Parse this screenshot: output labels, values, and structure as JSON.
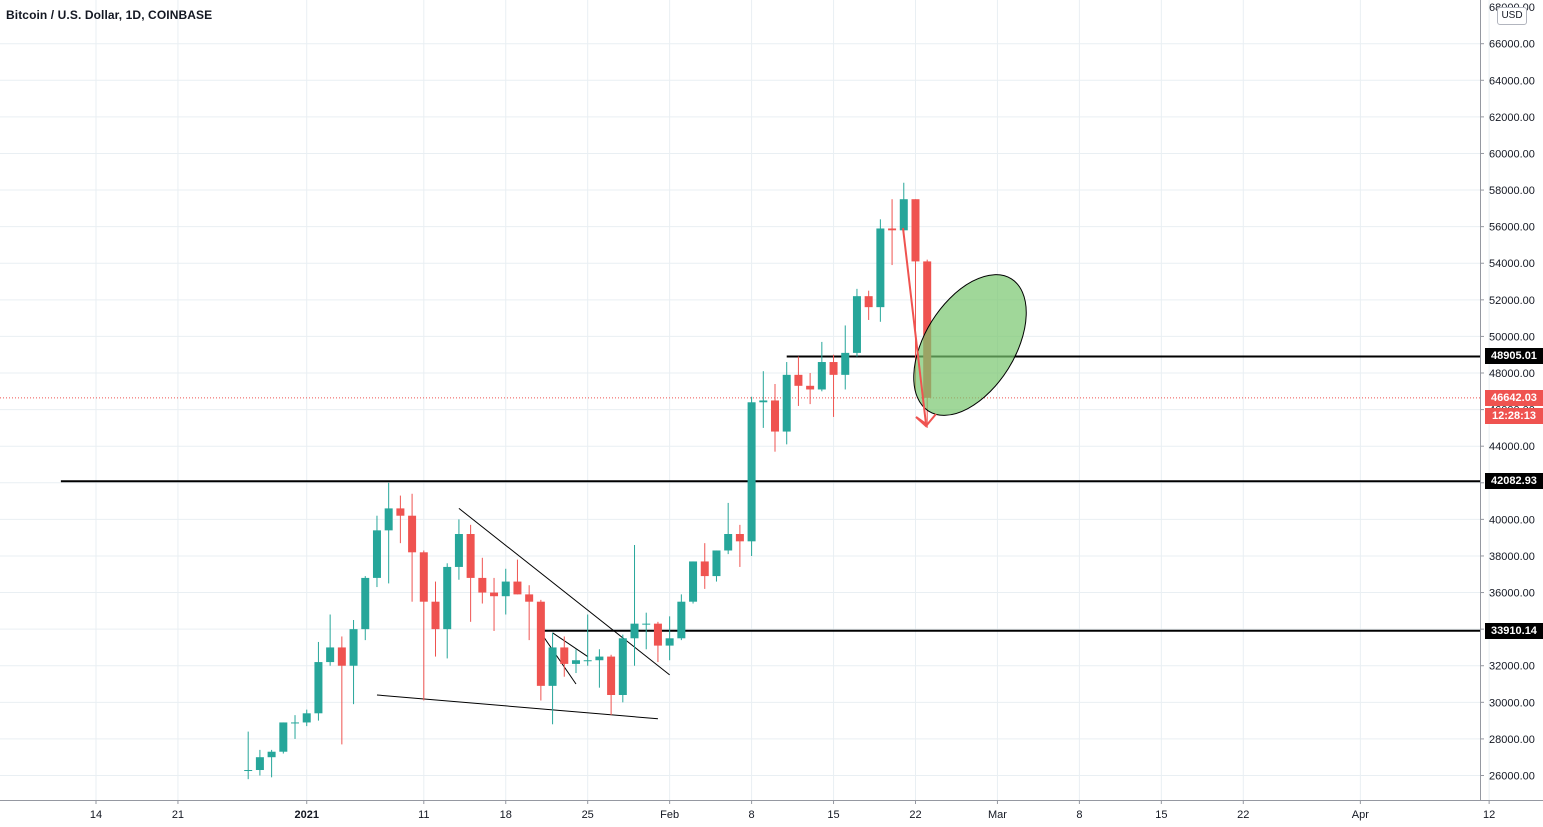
{
  "title": "Bitcoin / U.S. Dollar, 1D, COINBASE",
  "currency": "USD",
  "chart_data": {
    "type": "candlestick",
    "symbol": "Bitcoin / U.S. Dollar",
    "interval": "1D",
    "exchange": "COINBASE",
    "y_axis": {
      "ticks": [
        "26000.00",
        "28000.00",
        "30000.00",
        "32000.00",
        "34000.00",
        "36000.00",
        "38000.00",
        "40000.00",
        "42000.00",
        "44000.00",
        "46000.00",
        "48000.00",
        "50000.00",
        "52000.00",
        "54000.00",
        "56000.00",
        "58000.00",
        "60000.00",
        "62000.00",
        "64000.00",
        "66000.00"
      ],
      "range": [
        24800,
        68400
      ]
    },
    "x_axis": {
      "ticks": [
        {
          "label": "14",
          "date": "2020-12-14"
        },
        {
          "label": "21",
          "date": "2020-12-21"
        },
        {
          "label": "2021",
          "date": "2021-01-01",
          "bold": true
        },
        {
          "label": "11",
          "date": "2021-01-11"
        },
        {
          "label": "18",
          "date": "2021-01-18"
        },
        {
          "label": "25",
          "date": "2021-01-25"
        },
        {
          "label": "Feb",
          "date": "2021-02-01"
        },
        {
          "label": "8",
          "date": "2021-02-08"
        },
        {
          "label": "15",
          "date": "2021-02-15"
        },
        {
          "label": "22",
          "date": "2021-02-22"
        },
        {
          "label": "Mar",
          "date": "2021-03-01"
        },
        {
          "label": "8",
          "date": "2021-03-08"
        },
        {
          "label": "15",
          "date": "2021-03-15"
        },
        {
          "label": "22",
          "date": "2021-03-22"
        },
        {
          "label": "Apr",
          "date": "2021-04-01"
        },
        {
          "label": "12",
          "date": "2021-04-12"
        }
      ]
    },
    "candles": [
      {
        "date": "2020-12-27",
        "o": 26300,
        "h": 28400,
        "l": 25800,
        "c": 26300
      },
      {
        "date": "2020-12-28",
        "o": 26300,
        "h": 27400,
        "l": 26000,
        "c": 27000
      },
      {
        "date": "2020-12-29",
        "o": 27000,
        "h": 27400,
        "l": 25900,
        "c": 27300
      },
      {
        "date": "2020-12-30",
        "o": 27300,
        "h": 28900,
        "l": 27200,
        "c": 28900
      },
      {
        "date": "2020-12-31",
        "o": 28900,
        "h": 29300,
        "l": 28000,
        "c": 28900
      },
      {
        "date": "2021-01-01",
        "o": 28900,
        "h": 29600,
        "l": 28700,
        "c": 29400
      },
      {
        "date": "2021-01-02",
        "o": 29400,
        "h": 33300,
        "l": 29000,
        "c": 32200
      },
      {
        "date": "2021-01-03",
        "o": 32200,
        "h": 34800,
        "l": 32000,
        "c": 33000
      },
      {
        "date": "2021-01-04",
        "o": 33000,
        "h": 33600,
        "l": 27700,
        "c": 32000
      },
      {
        "date": "2021-01-05",
        "o": 32000,
        "h": 34500,
        "l": 29900,
        "c": 34000
      },
      {
        "date": "2021-01-06",
        "o": 34000,
        "h": 36900,
        "l": 33400,
        "c": 36800
      },
      {
        "date": "2021-01-07",
        "o": 36800,
        "h": 40200,
        "l": 36300,
        "c": 39400
      },
      {
        "date": "2021-01-08",
        "o": 39400,
        "h": 42000,
        "l": 36500,
        "c": 40600
      },
      {
        "date": "2021-01-09",
        "o": 40600,
        "h": 41300,
        "l": 38700,
        "c": 40200
      },
      {
        "date": "2021-01-10",
        "o": 40200,
        "h": 41400,
        "l": 35500,
        "c": 38200
      },
      {
        "date": "2021-01-11",
        "o": 38200,
        "h": 38300,
        "l": 30100,
        "c": 35500
      },
      {
        "date": "2021-01-12",
        "o": 35500,
        "h": 36600,
        "l": 32500,
        "c": 34000
      },
      {
        "date": "2021-01-13",
        "o": 34000,
        "h": 37600,
        "l": 32400,
        "c": 37400
      },
      {
        "date": "2021-01-14",
        "o": 37400,
        "h": 40000,
        "l": 36700,
        "c": 39200
      },
      {
        "date": "2021-01-15",
        "o": 39200,
        "h": 39700,
        "l": 34400,
        "c": 36800
      },
      {
        "date": "2021-01-16",
        "o": 36800,
        "h": 37900,
        "l": 35400,
        "c": 36000
      },
      {
        "date": "2021-01-17",
        "o": 36000,
        "h": 36800,
        "l": 33900,
        "c": 35800
      },
      {
        "date": "2021-01-18",
        "o": 35800,
        "h": 37300,
        "l": 34800,
        "c": 36600
      },
      {
        "date": "2021-01-19",
        "o": 36600,
        "h": 37800,
        "l": 35900,
        "c": 35900
      },
      {
        "date": "2021-01-20",
        "o": 35900,
        "h": 36400,
        "l": 33400,
        "c": 35500
      },
      {
        "date": "2021-01-21",
        "o": 35500,
        "h": 35600,
        "l": 30100,
        "c": 30900
      },
      {
        "date": "2021-01-22",
        "o": 30900,
        "h": 33800,
        "l": 28800,
        "c": 33000
      },
      {
        "date": "2021-01-23",
        "o": 33000,
        "h": 33600,
        "l": 31400,
        "c": 32100
      },
      {
        "date": "2021-01-24",
        "o": 32100,
        "h": 32900,
        "l": 31600,
        "c": 32300
      },
      {
        "date": "2021-01-25",
        "o": 32300,
        "h": 34800,
        "l": 32000,
        "c": 32300
      },
      {
        "date": "2021-01-26",
        "o": 32300,
        "h": 32900,
        "l": 30800,
        "c": 32500
      },
      {
        "date": "2021-01-27",
        "o": 32500,
        "h": 32600,
        "l": 29300,
        "c": 30400
      },
      {
        "date": "2021-01-28",
        "o": 30400,
        "h": 33700,
        "l": 30000,
        "c": 33500
      },
      {
        "date": "2021-01-29",
        "o": 33500,
        "h": 38600,
        "l": 32000,
        "c": 34300
      },
      {
        "date": "2021-01-30",
        "o": 34300,
        "h": 34900,
        "l": 32900,
        "c": 34300
      },
      {
        "date": "2021-01-31",
        "o": 34300,
        "h": 34400,
        "l": 32200,
        "c": 33100
      },
      {
        "date": "2021-02-01",
        "o": 33100,
        "h": 34700,
        "l": 32300,
        "c": 33500
      },
      {
        "date": "2021-02-02",
        "o": 33500,
        "h": 35900,
        "l": 33400,
        "c": 35500
      },
      {
        "date": "2021-02-03",
        "o": 35500,
        "h": 37700,
        "l": 35400,
        "c": 37700
      },
      {
        "date": "2021-02-04",
        "o": 37700,
        "h": 38700,
        "l": 36200,
        "c": 36900
      },
      {
        "date": "2021-02-05",
        "o": 36900,
        "h": 38300,
        "l": 36600,
        "c": 38300
      },
      {
        "date": "2021-02-06",
        "o": 38300,
        "h": 40900,
        "l": 38100,
        "c": 39200
      },
      {
        "date": "2021-02-07",
        "o": 39200,
        "h": 39700,
        "l": 37400,
        "c": 38800
      },
      {
        "date": "2021-02-08",
        "o": 38800,
        "h": 46700,
        "l": 38000,
        "c": 46400
      },
      {
        "date": "2021-02-09",
        "o": 46400,
        "h": 48100,
        "l": 45000,
        "c": 46500
      },
      {
        "date": "2021-02-10",
        "o": 46500,
        "h": 47400,
        "l": 43700,
        "c": 44800
      },
      {
        "date": "2021-02-11",
        "o": 44800,
        "h": 48600,
        "l": 44100,
        "c": 47900
      },
      {
        "date": "2021-02-12",
        "o": 47900,
        "h": 48900,
        "l": 46200,
        "c": 47300
      },
      {
        "date": "2021-02-13",
        "o": 47300,
        "h": 48000,
        "l": 46300,
        "c": 47100
      },
      {
        "date": "2021-02-14",
        "o": 47100,
        "h": 49700,
        "l": 47000,
        "c": 48600
      },
      {
        "date": "2021-02-15",
        "o": 48600,
        "h": 49000,
        "l": 45600,
        "c": 47900
      },
      {
        "date": "2021-02-16",
        "o": 47900,
        "h": 50600,
        "l": 47100,
        "c": 49100
      },
      {
        "date": "2021-02-17",
        "o": 49100,
        "h": 52600,
        "l": 48900,
        "c": 52200
      },
      {
        "date": "2021-02-18",
        "o": 52200,
        "h": 52500,
        "l": 50900,
        "c": 51600
      },
      {
        "date": "2021-02-19",
        "o": 51600,
        "h": 56400,
        "l": 50800,
        "c": 55900
      },
      {
        "date": "2021-02-20",
        "o": 55900,
        "h": 57500,
        "l": 53900,
        "c": 55800
      },
      {
        "date": "2021-02-21",
        "o": 55800,
        "h": 58400,
        "l": 55500,
        "c": 57500
      },
      {
        "date": "2021-02-22",
        "o": 57500,
        "h": 57500,
        "l": 47000,
        "c": 54100
      },
      {
        "date": "2021-02-23",
        "o": 54100,
        "h": 54200,
        "l": 45000,
        "c": 46642
      }
    ],
    "horizontal_levels": [
      {
        "value": 48905.01,
        "label": "48905.01"
      },
      {
        "value": 42082.93,
        "label": "42082.93"
      },
      {
        "value": 33910.14,
        "label": "33910.14"
      }
    ],
    "current_price": {
      "value": 46642.03,
      "label": "46642.03",
      "countdown": "12:28:13"
    },
    "colors": {
      "up": "#26a69a",
      "down": "#ef5350",
      "grid": "#e9eff3",
      "level": "#000000",
      "ellipse_fill": "#77c66e",
      "arrow": "#ef5350"
    }
  }
}
